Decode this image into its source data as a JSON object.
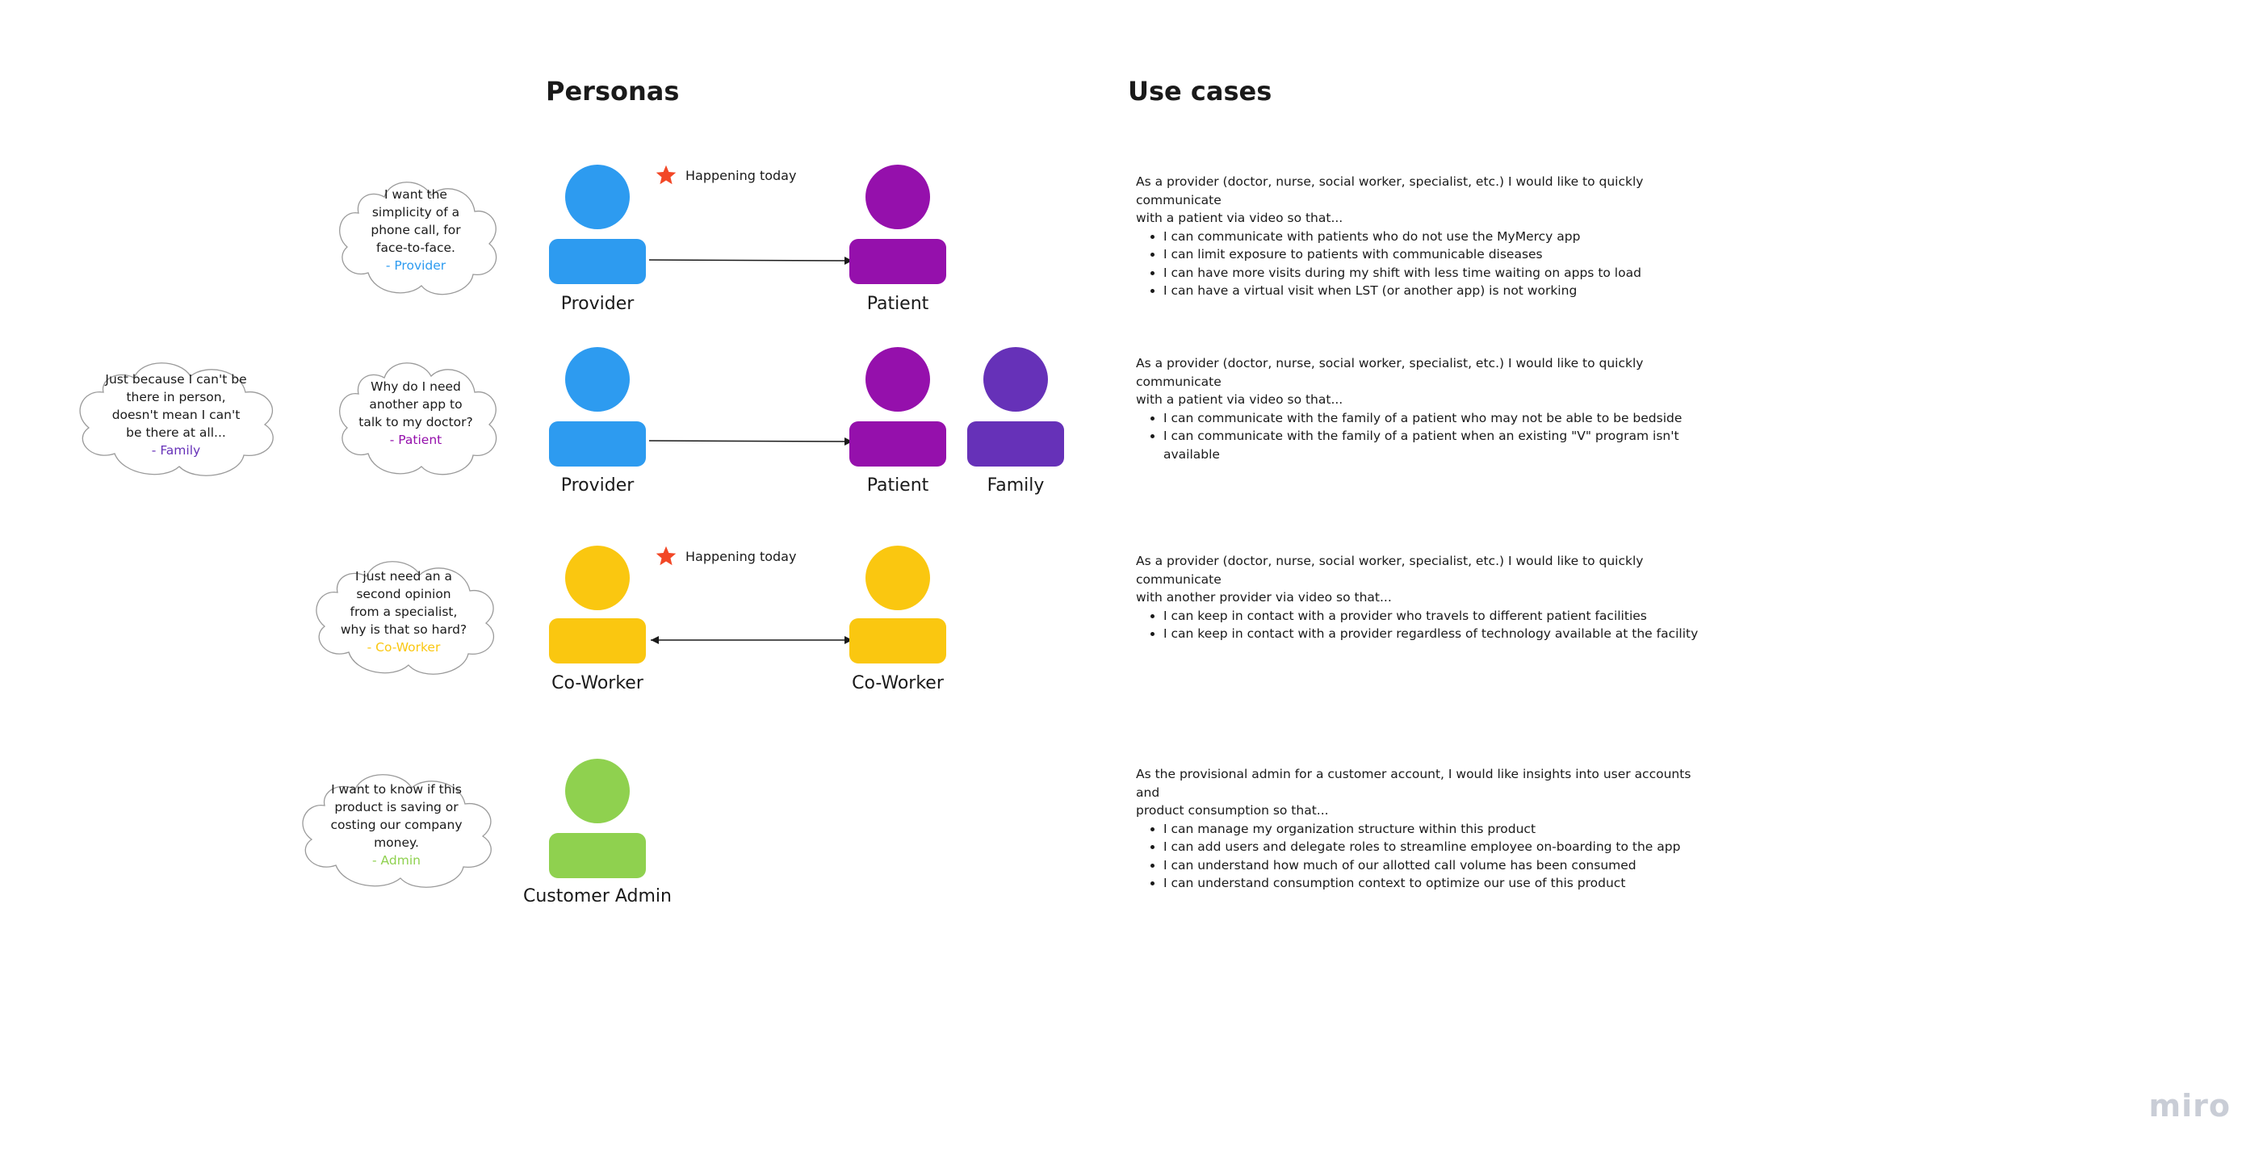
{
  "headings": {
    "personas": "Personas",
    "use_cases": "Use cases"
  },
  "colors": {
    "provider": "#2d9bf0",
    "patient": "#9510ac",
    "family": "#6631b8",
    "coworker": "#fac710",
    "admin": "#8fd14f",
    "star": "#f24726"
  },
  "badge_text": "Happening today",
  "rows": [
    {
      "quote": {
        "lines": [
          "I want the",
          "simplicity of a",
          "phone call, for",
          "face-to-face."
        ],
        "author": "- Provider"
      },
      "left_person": "Provider",
      "right_person": "Patient",
      "use_case": {
        "intro": [
          "As a provider (doctor, nurse, social worker, specialist, etc.) I would like to quickly communicate",
          "with a patient via video so that..."
        ],
        "bullets": [
          "I can communicate with patients who do not use the MyMercy app",
          "I can limit exposure to patients with communicable diseases",
          "I can have more visits during my shift with less time waiting on apps to load",
          "I can have a virtual visit when LST (or another app) is not working"
        ]
      }
    },
    {
      "quote": {
        "lines": [
          "Why do I need",
          "another app to",
          "talk to my doctor?"
        ],
        "author": "- Patient"
      },
      "quote_extra": {
        "lines": [
          "Just because I can't be",
          "there in person,",
          "doesn't mean I can't",
          "be there at all..."
        ],
        "author": "- Family"
      },
      "left_person": "Provider",
      "right_person": "Patient",
      "extra_person": "Family",
      "use_case": {
        "intro": [
          "As a provider (doctor, nurse, social worker, specialist, etc.) I would like to quickly communicate",
          "with a patient via video so that..."
        ],
        "bullets": [
          "I can communicate with the family of a patient who may not be able to be bedside",
          "I can communicate with the family of a patient when an existing \"V\" program isn't available"
        ]
      }
    },
    {
      "quote": {
        "lines": [
          "I just need an a",
          "second opinion",
          "from a specialist,",
          "why is that so hard?"
        ],
        "author": "- Co-Worker"
      },
      "left_person": "Co-Worker",
      "right_person": "Co-Worker",
      "use_case": {
        "intro": [
          "As a provider (doctor, nurse, social worker, specialist, etc.) I would like to quickly communicate",
          "with another provider via video so that..."
        ],
        "bullets": [
          "I can keep in contact with a provider who travels to different patient facilities",
          "I can keep in contact with a provider regardless of technology available at the facility"
        ]
      }
    },
    {
      "quote": {
        "lines": [
          "I want to know if this",
          "product is saving or",
          "costing our company",
          "money."
        ],
        "author": "- Admin"
      },
      "left_person": "Customer Admin",
      "use_case": {
        "intro": [
          "As the provisional admin for a customer account, I would like insights into user accounts and",
          "product consumption so that..."
        ],
        "bullets": [
          "I can manage my organization structure within this product",
          "I can add users and delegate roles to streamline employee on-boarding to the app",
          "I can understand how much of our allotted call volume has been consumed",
          "I can understand consumption context to optimize our use of this product"
        ]
      }
    }
  ],
  "logo": "miro"
}
